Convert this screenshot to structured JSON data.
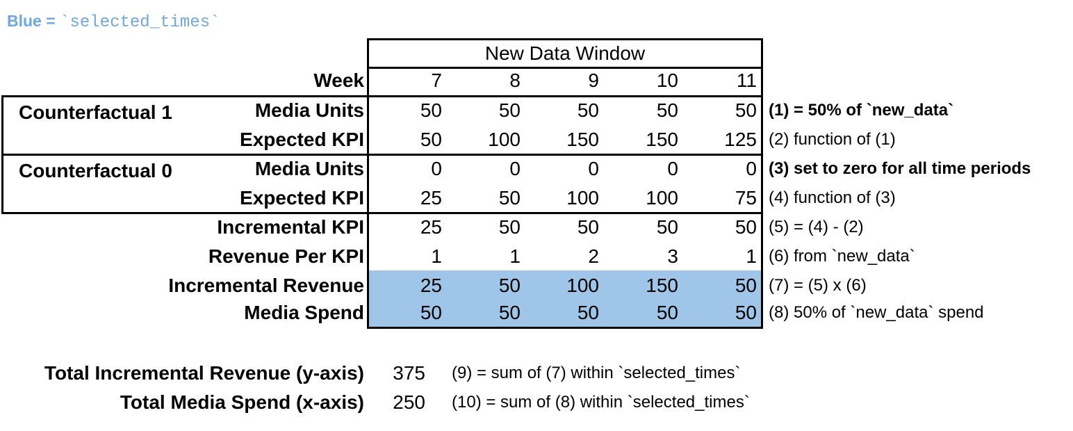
{
  "title": {
    "prefix": "Blue = ",
    "code": "`selected_times`"
  },
  "colors": {
    "highlight": "#9FC5E8",
    "title_blue": "#6FA8DC",
    "border": "#000000"
  },
  "table": {
    "window_header": "New Data Window",
    "week_label": "Week",
    "weeks": [
      "7",
      "8",
      "9",
      "10",
      "11"
    ],
    "groups": [
      {
        "label": "Counterfactual 1"
      },
      {
        "label": "Counterfactual 0"
      }
    ],
    "rows": [
      {
        "label": "Media Units",
        "group": "Counterfactual 1",
        "values": [
          50,
          50,
          50,
          50,
          50
        ],
        "annotation": "(1) = 50% of `new_data`",
        "annotation_bold": true,
        "highlight": false
      },
      {
        "label": "Expected KPI",
        "group": "Counterfactual 1",
        "values": [
          50,
          100,
          150,
          150,
          125
        ],
        "annotation": "(2) function of (1)",
        "annotation_bold": false,
        "highlight": false
      },
      {
        "label": "Media Units",
        "group": "Counterfactual 0",
        "values": [
          0,
          0,
          0,
          0,
          0
        ],
        "annotation": "(3) set to zero for all time periods",
        "annotation_bold": true,
        "highlight": false
      },
      {
        "label": "Expected KPI",
        "group": "Counterfactual 0",
        "values": [
          25,
          50,
          100,
          100,
          75
        ],
        "annotation": "(4) function of (3)",
        "annotation_bold": false,
        "highlight": false
      },
      {
        "label": "Incremental KPI",
        "group": null,
        "values": [
          25,
          50,
          50,
          50,
          50
        ],
        "annotation": "(5) = (4) - (2)",
        "annotation_bold": false,
        "highlight": false
      },
      {
        "label": "Revenue Per KPI",
        "group": null,
        "values": [
          1,
          1,
          2,
          3,
          1
        ],
        "annotation": "(6) from `new_data`",
        "annotation_bold": false,
        "highlight": false
      },
      {
        "label": "Incremental Revenue",
        "group": null,
        "values": [
          25,
          50,
          100,
          150,
          50
        ],
        "annotation": "(7) = (5) x (6)",
        "annotation_bold": false,
        "highlight": true
      },
      {
        "label": "Media Spend",
        "group": null,
        "values": [
          50,
          50,
          50,
          50,
          50
        ],
        "annotation": "(8) 50% of `new_data` spend",
        "annotation_bold": false,
        "highlight": true
      }
    ]
  },
  "totals": [
    {
      "label": "Total Incremental Revenue (y-axis)",
      "value": "375",
      "annotation": "(9) = sum of (7) within `selected_times`"
    },
    {
      "label": "Total Media Spend (x-axis)",
      "value": "250",
      "annotation": "(10) = sum of (8) within `selected_times`"
    }
  ]
}
